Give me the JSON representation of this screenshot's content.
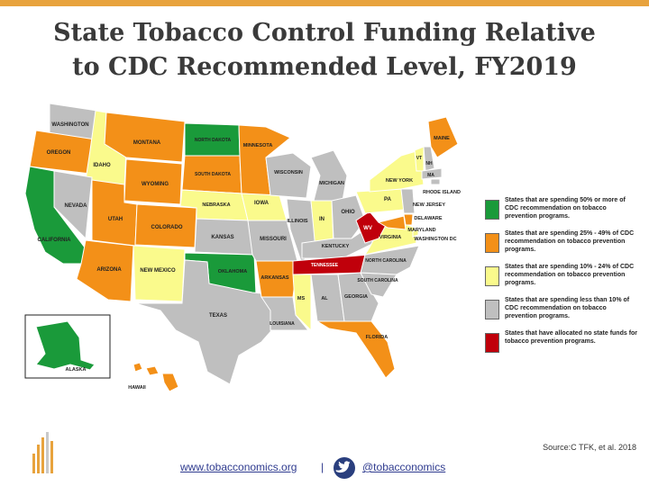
{
  "title": {
    "line1": "State Tobacco Control Funding Relative",
    "line2": "to CDC Recommended Level, FY2019"
  },
  "colors": {
    "green": "#1a9a3a",
    "orange": "#f39018",
    "yellow": "#fafa8c",
    "gray": "#bfbfbf",
    "red": "#c0000b",
    "accent_bar": "#e8a33d"
  },
  "legend": [
    {
      "category": "green",
      "text": "States that are spending 50% or more of CDC recommendation on tobacco prevention programs."
    },
    {
      "category": "orange",
      "text": "States that are spending 25% - 49% of CDC recommendation on tobacco prevention programs."
    },
    {
      "category": "yellow",
      "text": "States that are spending 10% - 24% of CDC recommendation on tobacco prevention programs."
    },
    {
      "category": "gray",
      "text": "States that are spending less than 10% of CDC recommendation on tobacco prevention programs."
    },
    {
      "category": "red",
      "text": "States that have allocated no state funds for tobacco prevention programs."
    }
  ],
  "states": [
    {
      "label": "WASHINGTON",
      "category": "gray"
    },
    {
      "label": "OREGON",
      "category": "orange"
    },
    {
      "label": "CALIFORNIA",
      "category": "green"
    },
    {
      "label": "IDAHO",
      "category": "yellow"
    },
    {
      "label": "NEVADA",
      "category": "gray"
    },
    {
      "label": "MONTANA",
      "category": "orange"
    },
    {
      "label": "WYOMING",
      "category": "orange"
    },
    {
      "label": "UTAH",
      "category": "orange"
    },
    {
      "label": "ARIZONA",
      "category": "orange"
    },
    {
      "label": "COLORADO",
      "category": "orange"
    },
    {
      "label": "NEW MEXICO",
      "category": "yellow"
    },
    {
      "label": "NORTH DAKOTA",
      "category": "green"
    },
    {
      "label": "SOUTH DAKOTA",
      "category": "orange"
    },
    {
      "label": "NEBRASKA",
      "category": "yellow"
    },
    {
      "label": "KANSAS",
      "category": "gray"
    },
    {
      "label": "OKLAHOMA",
      "category": "green"
    },
    {
      "label": "TEXAS",
      "category": "gray"
    },
    {
      "label": "MINNESOTA",
      "category": "orange"
    },
    {
      "label": "IOWA",
      "category": "yellow"
    },
    {
      "label": "MISSOURI",
      "category": "gray"
    },
    {
      "label": "ARKANSAS",
      "category": "orange"
    },
    {
      "label": "LOUISIANA",
      "category": "gray"
    },
    {
      "label": "WISCONSIN",
      "category": "gray"
    },
    {
      "label": "ILLINOIS",
      "category": "gray"
    },
    {
      "label": "MICHIGAN",
      "category": "gray"
    },
    {
      "label": "IN",
      "category": "yellow"
    },
    {
      "label": "OHIO",
      "category": "gray"
    },
    {
      "label": "KENTUCKY",
      "category": "gray"
    },
    {
      "label": "TENNESSEE",
      "category": "red"
    },
    {
      "label": "MS",
      "category": "yellow"
    },
    {
      "label": "AL",
      "category": "gray"
    },
    {
      "label": "GEORGIA",
      "category": "gray"
    },
    {
      "label": "FLORIDA",
      "category": "orange"
    },
    {
      "label": "SOUTH CAROLINA",
      "category": "gray"
    },
    {
      "label": "NORTH CAROLINA",
      "category": "gray"
    },
    {
      "label": "VIRGINIA",
      "category": "yellow"
    },
    {
      "label": "WV",
      "category": "red"
    },
    {
      "label": "PA",
      "category": "yellow"
    },
    {
      "label": "NEW YORK",
      "category": "yellow"
    },
    {
      "label": "MAINE",
      "category": "orange"
    },
    {
      "label": "VT",
      "category": "yellow"
    },
    {
      "label": "NH",
      "category": "gray"
    },
    {
      "label": "MA",
      "category": "gray"
    },
    {
      "label": "RHODE ISLAND",
      "category": "gray"
    },
    {
      "label": "NEW JERSEY",
      "category": "gray"
    },
    {
      "label": "DELAWARE",
      "category": "orange"
    },
    {
      "label": "MARYLAND",
      "category": "orange"
    },
    {
      "label": "WASHINGTON DC",
      "category": "yellow"
    },
    {
      "label": "ALASKA",
      "category": "green"
    },
    {
      "label": "HAWAII",
      "category": "orange"
    }
  ],
  "source": "Source:C TFK, et al. 2018",
  "footer": {
    "website": "www.tobacconomics.org",
    "separator": "|",
    "twitter": "@tobacconomics"
  }
}
